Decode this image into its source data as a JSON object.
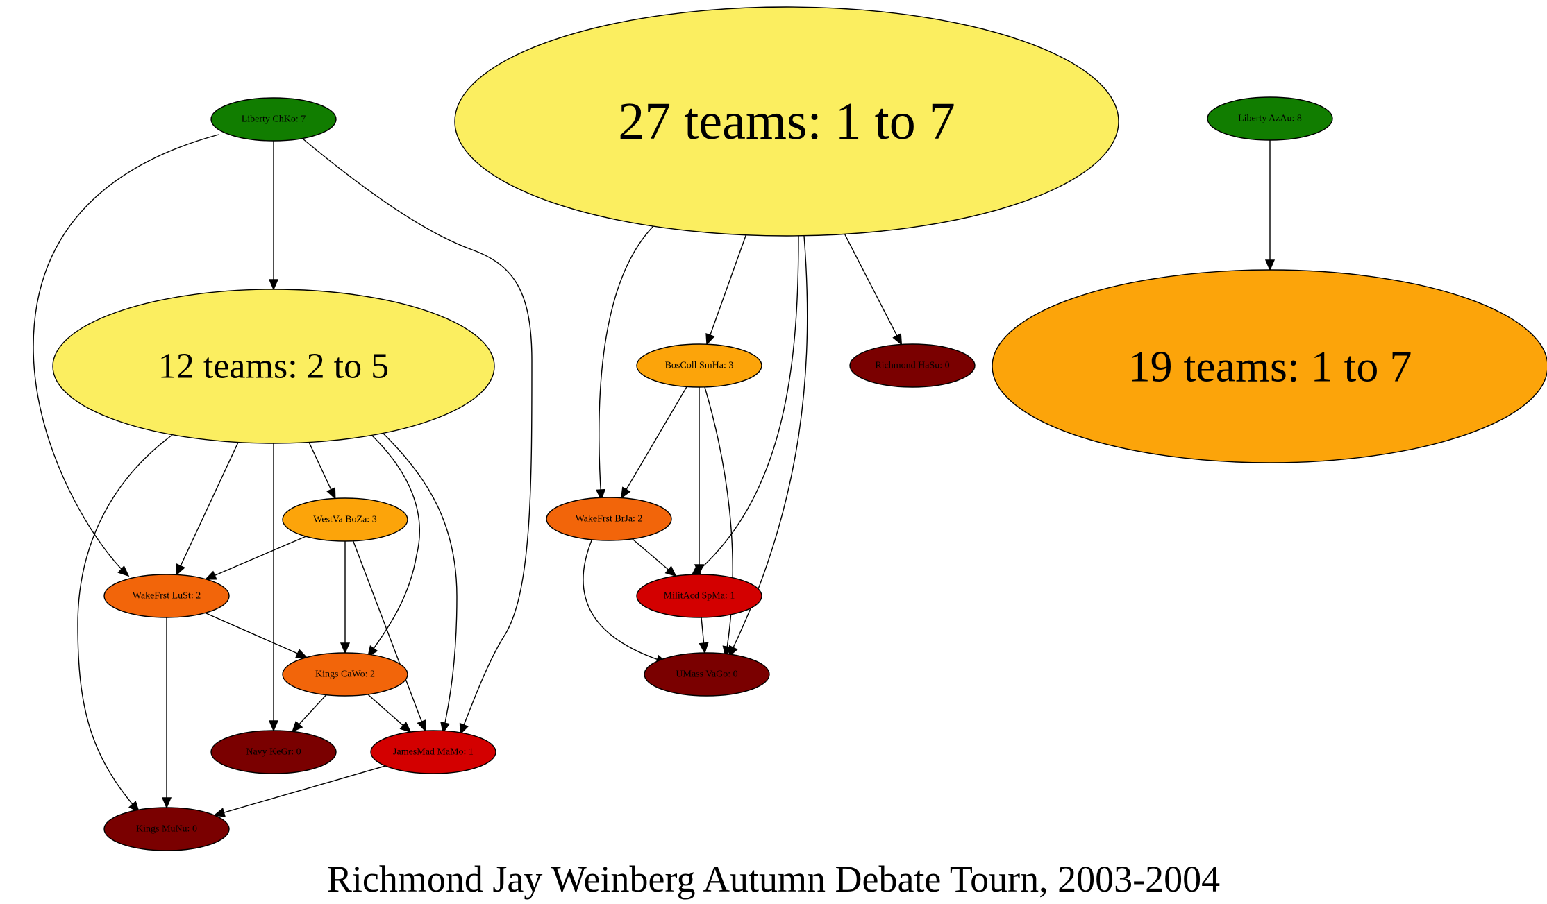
{
  "title": "Richmond Jay Weinberg Autumn Debate Tourn, 2003-2004",
  "colors": {
    "record_8_to_7": "#117d00",
    "group_yellow": "#fbee60",
    "record_3_or_group_orange": "#fca40a",
    "record_2": "#f2650a",
    "record_1": "#d30000",
    "record_0": "#7a0000"
  },
  "nodes": [
    {
      "id": "liberty_chko",
      "label": "Liberty ChKo: 7",
      "color": "#117d00"
    },
    {
      "id": "group27",
      "label": "27 teams: 1 to 7",
      "color": "#fbee60"
    },
    {
      "id": "liberty_azau",
      "label": "Liberty AzAu: 8",
      "color": "#117d00"
    },
    {
      "id": "group12",
      "label": "12 teams: 2 to 5",
      "color": "#fbee60"
    },
    {
      "id": "boscoll_smha",
      "label": "BosColl SmHa: 3",
      "color": "#fca40a"
    },
    {
      "id": "richmond_hasu",
      "label": "Richmond HaSu: 0",
      "color": "#7a0000"
    },
    {
      "id": "group19",
      "label": "19 teams: 1 to 7",
      "color": "#fca40a"
    },
    {
      "id": "westva_boza",
      "label": "WestVa BoZa: 3",
      "color": "#fca40a"
    },
    {
      "id": "wakefrst_brja",
      "label": "WakeFrst BrJa: 2",
      "color": "#f2650a"
    },
    {
      "id": "wakefrst_lust",
      "label": "WakeFrst LuSt: 2",
      "color": "#f2650a"
    },
    {
      "id": "militacd_spma",
      "label": "MilitAcd SpMa: 1",
      "color": "#d30000"
    },
    {
      "id": "kings_cawo",
      "label": "Kings CaWo: 2",
      "color": "#f2650a"
    },
    {
      "id": "umass_vago",
      "label": "UMass VaGo: 0",
      "color": "#7a0000"
    },
    {
      "id": "navy_kegr",
      "label": "Navy KeGr: 0",
      "color": "#7a0000"
    },
    {
      "id": "jamesmad_mamo",
      "label": "JamesMad MaMo: 1",
      "color": "#d30000"
    },
    {
      "id": "kings_munu",
      "label": "Kings MuNu: 0",
      "color": "#7a0000"
    }
  ],
  "edges": [
    {
      "from": "liberty_chko",
      "to": "group12"
    },
    {
      "from": "liberty_chko",
      "to": "wakefrst_lust"
    },
    {
      "from": "liberty_chko",
      "to": "jamesmad_mamo"
    },
    {
      "from": "liberty_azau",
      "to": "group19"
    },
    {
      "from": "group27",
      "to": "boscoll_smha"
    },
    {
      "from": "group27",
      "to": "richmond_hasu"
    },
    {
      "from": "group27",
      "to": "wakefrst_brja"
    },
    {
      "from": "group27",
      "to": "militacd_spma"
    },
    {
      "from": "group27",
      "to": "umass_vago"
    },
    {
      "from": "group12",
      "to": "westva_boza"
    },
    {
      "from": "group12",
      "to": "wakefrst_lust"
    },
    {
      "from": "group12",
      "to": "navy_kegr"
    },
    {
      "from": "group12",
      "to": "kings_cawo"
    },
    {
      "from": "group12",
      "to": "jamesmad_mamo"
    },
    {
      "from": "group12",
      "to": "kings_munu"
    },
    {
      "from": "boscoll_smha",
      "to": "wakefrst_brja"
    },
    {
      "from": "boscoll_smha",
      "to": "militacd_spma"
    },
    {
      "from": "boscoll_smha",
      "to": "umass_vago"
    },
    {
      "from": "westva_boza",
      "to": "wakefrst_lust"
    },
    {
      "from": "westva_boza",
      "to": "kings_cawo"
    },
    {
      "from": "westva_boza",
      "to": "jamesmad_mamo"
    },
    {
      "from": "wakefrst_brja",
      "to": "militacd_spma"
    },
    {
      "from": "wakefrst_brja",
      "to": "umass_vago"
    },
    {
      "from": "militacd_spma",
      "to": "umass_vago"
    },
    {
      "from": "wakefrst_lust",
      "to": "kings_cawo"
    },
    {
      "from": "wakefrst_lust",
      "to": "kings_munu"
    },
    {
      "from": "kings_cawo",
      "to": "navy_kegr"
    },
    {
      "from": "kings_cawo",
      "to": "jamesmad_mamo"
    },
    {
      "from": "jamesmad_mamo",
      "to": "kings_munu"
    }
  ]
}
